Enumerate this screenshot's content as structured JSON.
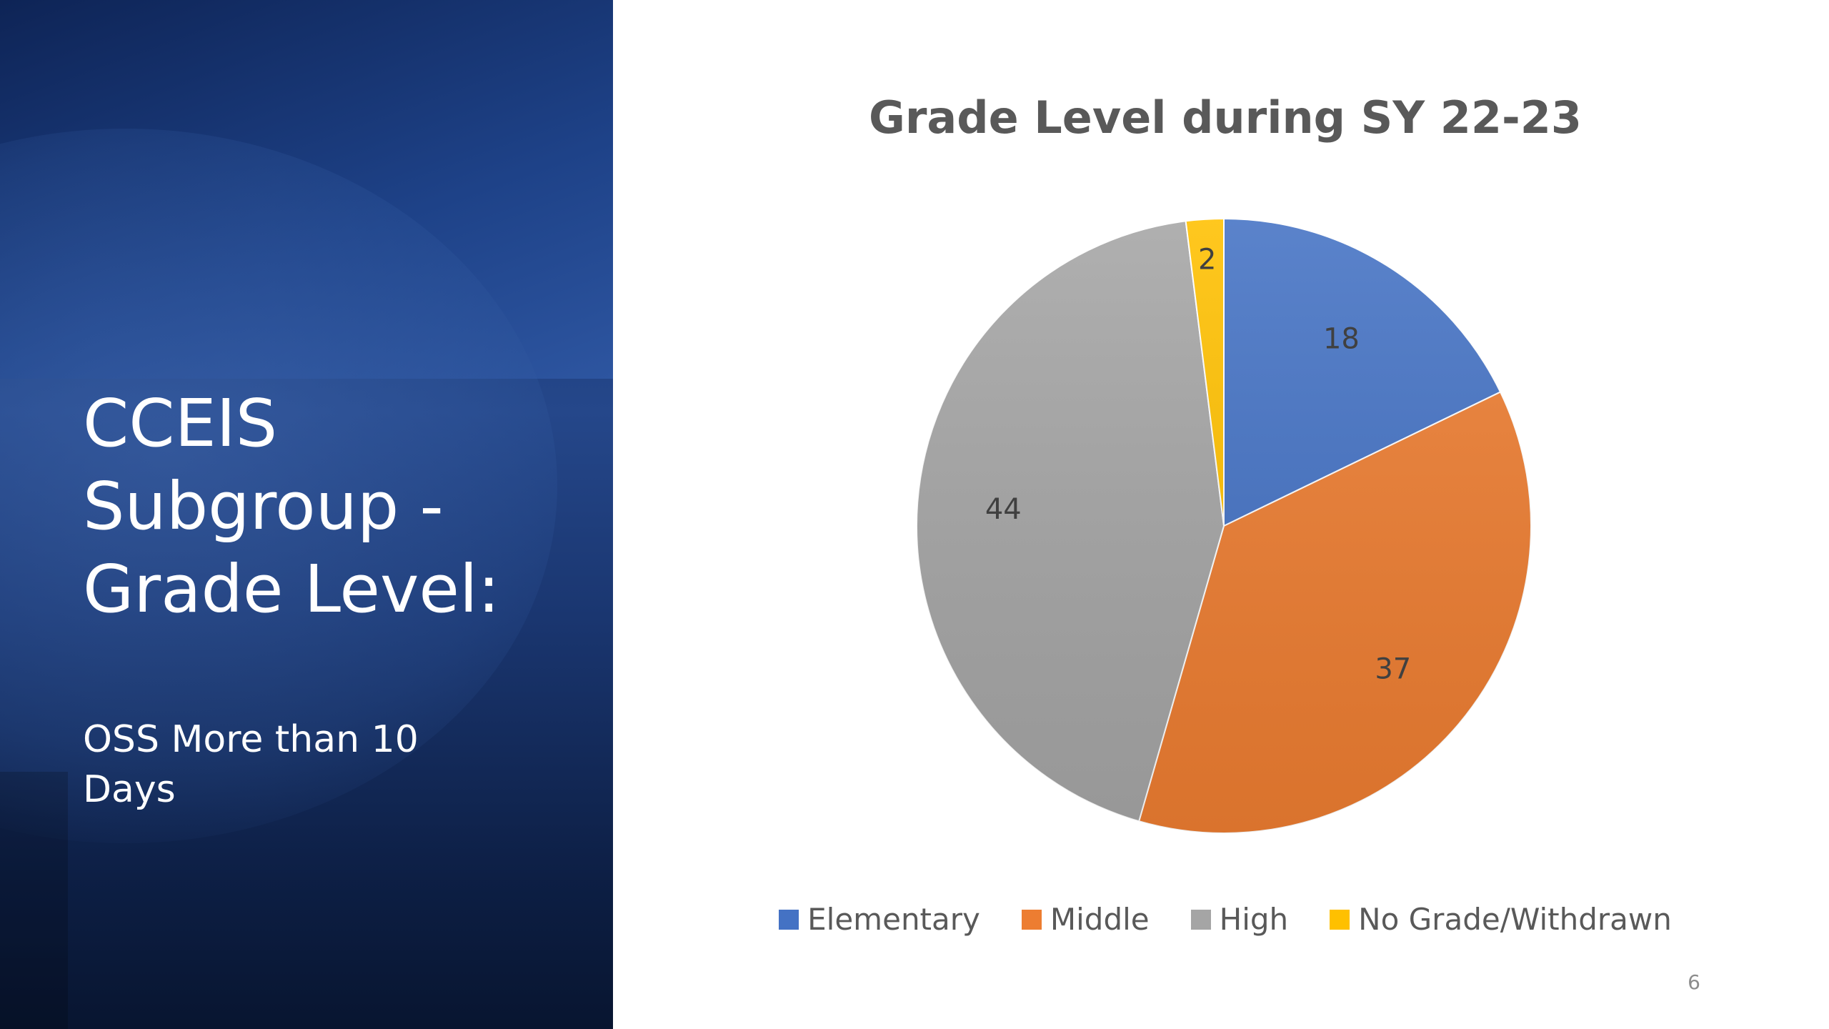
{
  "slide": {
    "title_lines": [
      "CCEIS",
      "Subgroup -",
      "Grade Level:"
    ],
    "subtitle_lines": [
      "OSS More than 10",
      "Days"
    ],
    "page_number": "6"
  },
  "chart_data": {
    "type": "pie",
    "title": "Grade Level during SY 22-23",
    "categories": [
      "Elementary",
      "Middle",
      "High",
      "No Grade/Withdrawn"
    ],
    "values": [
      18,
      37,
      44,
      2
    ],
    "labels": [
      "18",
      "37",
      "44",
      "2"
    ],
    "colors": [
      "#4472c4",
      "#ed7d31",
      "#a5a5a5",
      "#ffc000"
    ],
    "legend_position": "bottom",
    "start_angle": "12 o'clock",
    "direction": "clockwise"
  }
}
